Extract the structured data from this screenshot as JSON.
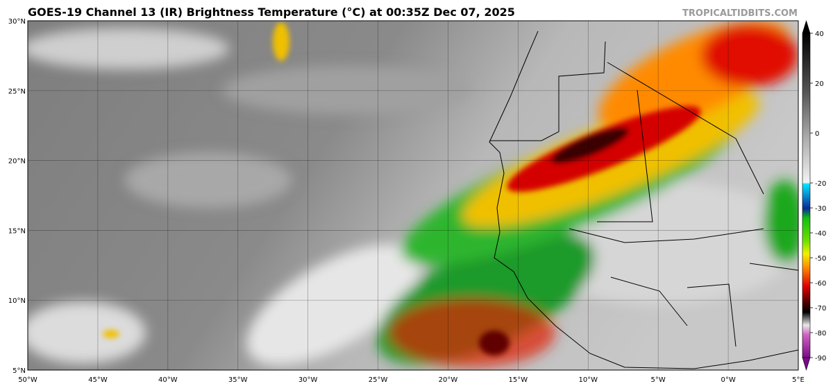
{
  "header": {
    "title": "GOES-19 Channel 13 (IR) Brightness Temperature (°C) at 00:35Z Dec 07, 2025",
    "watermark": "TROPICALTIDBITS.COM"
  },
  "map": {
    "lon_range": [
      -50,
      5
    ],
    "lat_range": [
      5,
      30
    ],
    "lat_ticks": [
      {
        "value": 30,
        "label": "30°N"
      },
      {
        "value": 25,
        "label": "25°N"
      },
      {
        "value": 20,
        "label": "20°N"
      },
      {
        "value": 15,
        "label": "15°N"
      },
      {
        "value": 10,
        "label": "10°N"
      },
      {
        "value": 5,
        "label": "5°N"
      }
    ],
    "lon_ticks": [
      {
        "value": -50,
        "label": "50°W"
      },
      {
        "value": -45,
        "label": "45°W"
      },
      {
        "value": -40,
        "label": "40°W"
      },
      {
        "value": -35,
        "label": "35°W"
      },
      {
        "value": -30,
        "label": "30°W"
      },
      {
        "value": -25,
        "label": "25°W"
      },
      {
        "value": -20,
        "label": "20°W"
      },
      {
        "value": -15,
        "label": "15°W"
      },
      {
        "value": -10,
        "label": "10°W"
      },
      {
        "value": -5,
        "label": "5°W"
      },
      {
        "value": 0,
        "label": "0°W"
      },
      {
        "value": 5,
        "label": "5°E"
      }
    ]
  },
  "colorbar": {
    "range": [
      -95,
      45
    ],
    "ticks": [
      40,
      20,
      0,
      -20,
      -30,
      -40,
      -50,
      -60,
      -70,
      -80,
      -90
    ]
  }
}
